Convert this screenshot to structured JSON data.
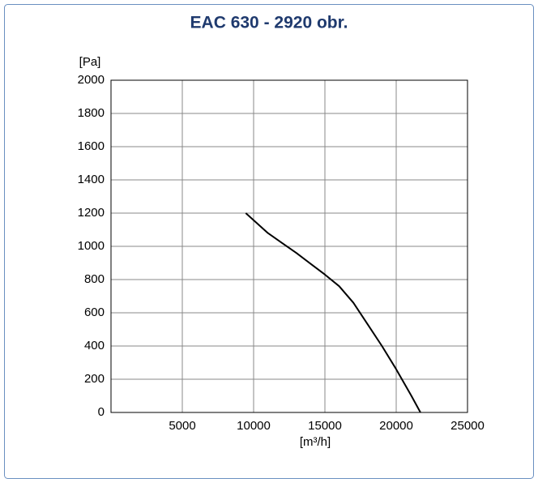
{
  "chart_data": {
    "type": "line",
    "title": "EAC 630 - 2920 obr.",
    "y_label": "[Pa]",
    "x_label": "[m³/h]",
    "x": [
      9450,
      11000,
      12000,
      13000,
      14000,
      15000,
      16000,
      17000,
      18000,
      19000,
      20000,
      21000,
      21700
    ],
    "series": [
      {
        "color": "#000000",
        "values": [
          1200,
          1080,
          1020,
          960,
          895,
          830,
          760,
          660,
          530,
          400,
          260,
          110,
          0
        ]
      }
    ],
    "xlim": [
      0,
      25000
    ],
    "xticks": [
      5000,
      10000,
      15000,
      20000,
      25000
    ],
    "ylim": [
      0,
      2000
    ],
    "yticks": [
      0,
      200,
      400,
      600,
      800,
      1000,
      1200,
      1400,
      1600,
      1800,
      2000
    ],
    "grid": true
  }
}
